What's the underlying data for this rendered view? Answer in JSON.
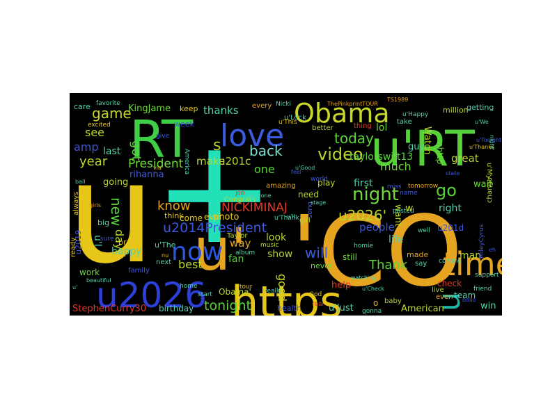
{
  "wordcloud": {
    "background": "#000000",
    "words": [
      {
        "text": "u",
        "color": "#e6c619"
      },
      {
        "text": "+",
        "color": "#22e0b8"
      },
      {
        "text": "'CO",
        "color": "#e6a520"
      },
      {
        "text": "https",
        "color": "#e6c619"
      },
      {
        "text": "u'RT",
        "color": "#55d13a"
      },
      {
        "text": "RT",
        "color": "#3fcf47"
      },
      {
        "text": "love",
        "color": "#3a5de0"
      },
      {
        "text": "u2026",
        "color": "#2c3fd8"
      },
      {
        "text": "u'",
        "color": "#e6a520"
      },
      {
        "text": "Obama",
        "color": "#c8d62a"
      },
      {
        "text": "time",
        "color": "#e6a520"
      },
      {
        "text": "now",
        "color": "#2c58e0"
      },
      {
        "text": "n",
        "color": "#23b4a8"
      },
      {
        "text": "u2014President",
        "color": "#3d57e0"
      },
      {
        "text": "NICKIMINAJ",
        "color": "#e03a2a"
      },
      {
        "text": "night",
        "color": "#6fd83a"
      },
      {
        "text": "video",
        "color": "#b9d62a"
      },
      {
        "text": "today",
        "color": "#5ad23c"
      },
      {
        "text": "back",
        "color": "#7ee0d0"
      },
      {
        "text": "u2026'",
        "color": "#b9d62a"
      },
      {
        "text": "President",
        "color": "#6fd83a"
      },
      {
        "text": "game",
        "color": "#c8d62a"
      },
      {
        "text": "go",
        "color": "#5ad23c"
      },
      {
        "text": "tonight",
        "color": "#5ad23c"
      },
      {
        "text": "Thank",
        "color": "#5ad23c"
      },
      {
        "text": "taylorswift13",
        "color": "#5ad23c"
      },
      {
        "text": "know",
        "color": "#e6a520"
      },
      {
        "text": "will",
        "color": "#3a5de0"
      },
      {
        "text": "make",
        "color": "#b9d62a"
      },
      {
        "text": "u201c",
        "color": "#b9d62a"
      },
      {
        "text": "year",
        "color": "#b9d62a"
      },
      {
        "text": "one",
        "color": "#5ad23c"
      },
      {
        "text": "see",
        "color": "#b9d62a"
      },
      {
        "text": "thanks",
        "color": "#55d1b0"
      },
      {
        "text": "KingJame",
        "color": "#6fd83a"
      },
      {
        "text": "got",
        "color": "#5ad23c"
      },
      {
        "text": "amp",
        "color": "#3d57e0"
      },
      {
        "text": "last",
        "color": "#55d1b0"
      },
      {
        "text": "new",
        "color": "#5ad23c"
      },
      {
        "text": "day",
        "color": "#b9d62a"
      },
      {
        "text": "rihanna",
        "color": "#3d57e0"
      },
      {
        "text": "going",
        "color": "#b9d62a"
      },
      {
        "text": "happy",
        "color": "#55d1b0"
      },
      {
        "text": "best",
        "color": "#b9d62a"
      },
      {
        "text": "fan",
        "color": "#5ad23c"
      },
      {
        "text": "way",
        "color": "#e6a520"
      },
      {
        "text": "good",
        "color": "#c8d62a"
      },
      {
        "text": "show",
        "color": "#b9d62a"
      },
      {
        "text": "look",
        "color": "#b9d62a"
      },
      {
        "text": "much",
        "color": "#6fd83a"
      },
      {
        "text": "want",
        "color": "#b9d62a"
      },
      {
        "text": "first",
        "color": "#55d1b0"
      },
      {
        "text": "people",
        "color": "#3d57e0"
      },
      {
        "text": "life",
        "color": "#55d1b0"
      },
      {
        "text": "right",
        "color": "#55d1b0"
      },
      {
        "text": "great",
        "color": "#b9d62a"
      },
      {
        "text": "guy",
        "color": "#55d1b0"
      },
      {
        "text": "lol",
        "color": "#6fd83a"
      },
      {
        "text": "Watch",
        "color": "#b9d62a"
      },
      {
        "text": "nhttp",
        "color": "#6fd83a"
      },
      {
        "text": "man",
        "color": "#b9d62a"
      },
      {
        "text": "wait",
        "color": "#6fd83a"
      },
      {
        "text": "StephenCurry30",
        "color": "#e03a2a"
      },
      {
        "text": "birthday",
        "color": "#55d1b0"
      },
      {
        "text": "Obama'",
        "color": "#b9d62a"
      },
      {
        "text": "help",
        "color": "#e03a2a"
      },
      {
        "text": "u'Just",
        "color": "#55d1b0"
      },
      {
        "text": "American",
        "color": "#b9d62a"
      },
      {
        "text": "win",
        "color": "#55d1b0"
      },
      {
        "text": "check",
        "color": "#e03a2a"
      },
      {
        "text": "team",
        "color": "#55d1b0"
      },
      {
        "text": "u201d",
        "color": "#3d57e0"
      },
      {
        "text": "u2019",
        "color": "#3d57e0"
      },
      {
        "text": "photo",
        "color": "#e6c619"
      },
      {
        "text": "ever",
        "color": "#e6c619"
      },
      {
        "text": "come",
        "color": "#e6c619"
      },
      {
        "text": "work",
        "color": "#6fd83a"
      },
      {
        "text": "think",
        "color": "#e6c619"
      },
      {
        "text": "need",
        "color": "#b9d62a"
      },
      {
        "text": "play",
        "color": "#b9d62a"
      },
      {
        "text": "still",
        "color": "#6fd83a"
      },
      {
        "text": "made",
        "color": "#e6a520"
      },
      {
        "text": "never",
        "color": "#6fd83a"
      },
      {
        "text": "u'The",
        "color": "#55d1b0"
      },
      {
        "text": "bro",
        "color": "#e6c619"
      },
      {
        "text": "care",
        "color": "#55d1b0"
      },
      {
        "text": "keep",
        "color": "#e6c619"
      },
      {
        "text": "week",
        "color": "#3d57e0"
      },
      {
        "text": "Congrats",
        "color": "#b9d62a"
      },
      {
        "text": "amazing",
        "color": "#e6a520"
      },
      {
        "text": "every",
        "color": "#e6a520"
      },
      {
        "text": "u'Lock",
        "color": "#55d1b0"
      },
      {
        "text": "better",
        "color": "#b9d62a"
      },
      {
        "text": "thing",
        "color": "#e03a2a"
      },
      {
        "text": "u'This",
        "color": "#e6c619"
      },
      {
        "text": "ThePinkprintTOUR",
        "color": "#e6a520"
      },
      {
        "text": "TS1989",
        "color": "#e6a520"
      },
      {
        "text": "u'Happy",
        "color": "#55d1b0"
      },
      {
        "text": "million",
        "color": "#b9d62a"
      },
      {
        "text": "getting",
        "color": "#55d1b0"
      },
      {
        "text": "u'My",
        "color": "#b9d62a"
      },
      {
        "text": "change",
        "color": "#b9d62a"
      },
      {
        "text": "MileyCyrus",
        "color": "#3d57e0"
      },
      {
        "text": "coming",
        "color": "#55d1b0"
      },
      {
        "text": "live",
        "color": "#b9d62a"
      },
      {
        "text": "friend",
        "color": "#55d1b0"
      },
      {
        "text": "baby",
        "color": "#b9d62a"
      },
      {
        "text": "gonna",
        "color": "#55d1b0"
      },
      {
        "text": "health",
        "color": "#3d57e0"
      },
      {
        "text": "next",
        "color": "#55d1b0"
      },
      {
        "text": "family",
        "color": "#3d57e0"
      },
      {
        "text": "ready",
        "color": "#e6c619"
      },
      {
        "text": "big",
        "color": "#55d1b0"
      },
      {
        "text": "sure",
        "color": "#3d57e0"
      },
      {
        "text": "always",
        "color": "#e6c619"
      },
      {
        "text": "Taylor",
        "color": "#b9d62a"
      },
      {
        "text": "music",
        "color": "#b9d62a"
      },
      {
        "text": "girl",
        "color": "#b9d62a"
      },
      {
        "text": "song",
        "color": "#3d57e0"
      },
      {
        "text": "posted",
        "color": "#55d1b0"
      },
      {
        "text": "name",
        "color": "#3d57e0"
      },
      {
        "text": "world",
        "color": "#3d57e0"
      },
      {
        "text": "take",
        "color": "#55d1b0"
      },
      {
        "text": "say",
        "color": "#55d1b0"
      },
      {
        "text": "even",
        "color": "#e6a520"
      },
      {
        "text": "album",
        "color": "#55d1b0"
      },
      {
        "text": "u'Thank",
        "color": "#55d1b0"
      },
      {
        "text": "home",
        "color": "#55d1b0"
      },
      {
        "text": "real",
        "color": "#e03a2a"
      },
      {
        "text": "start",
        "color": "#55d1b0"
      },
      {
        "text": "favorite",
        "color": "#55d1b0"
      },
      {
        "text": "excited",
        "color": "#e6c619"
      },
      {
        "text": "America",
        "color": "#55d1b0"
      },
      {
        "text": "give",
        "color": "#3d57e0"
      },
      {
        "text": "job",
        "color": "#e03a2a"
      },
      {
        "text": "tomorrow",
        "color": "#e6a520"
      },
      {
        "text": "support",
        "color": "#55d1b0"
      },
      {
        "text": "God",
        "color": "#e6c619"
      },
      {
        "text": "homie",
        "color": "#55d1b0"
      },
      {
        "text": "miss",
        "color": "#3d57e0"
      },
      {
        "text": "really",
        "color": "#55d1b0"
      },
      {
        "text": "everyone",
        "color": "#55d1b0"
      },
      {
        "text": "watching",
        "color": "#55d1b0"
      },
      {
        "text": "tour",
        "color": "#e6c619"
      },
      {
        "text": "beautiful",
        "color": "#55d1b0"
      },
      {
        "text": "u'Check",
        "color": "#55d1b0"
      },
      {
        "text": "well",
        "color": "#55d1b0"
      },
      {
        "text": "Nicki",
        "color": "#55d1b0"
      },
      {
        "text": "u'Good",
        "color": "#55d1b0"
      },
      {
        "text": "u'We",
        "color": "#55d1b0"
      },
      {
        "text": "u'Thanks",
        "color": "#e6c619"
      },
      {
        "text": "u'Tonight",
        "color": "#3d57e0"
      },
      {
        "text": "u'It",
        "color": "#55d1b0"
      },
      {
        "text": "ballo",
        "color": "#3d57e0"
      },
      {
        "text": "nu",
        "color": "#e6c619"
      },
      {
        "text": "eh",
        "color": "#3d57e0"
      },
      {
        "text": "via",
        "color": "#e6c619"
      },
      {
        "text": "ball",
        "color": "#55d1b0"
      },
      {
        "text": "feel",
        "color": "#3d57e0"
      },
      {
        "text": "state",
        "color": "#3d57e0"
      },
      {
        "text": "stage",
        "color": "#55d1b0"
      },
      {
        "text": "girls",
        "color": "#e6a520"
      },
      {
        "text": "night'",
        "color": "#55d1b0"
      },
      {
        "text": "w",
        "color": "#b9d62a"
      },
      {
        "text": "u'I",
        "color": "#55d1b0"
      },
      {
        "text": "s",
        "color": "#b9d62a"
      },
      {
        "text": "o",
        "color": "#e6a520"
      },
      {
        "text": "u'",
        "color": "#55d1b0"
      }
    ]
  }
}
